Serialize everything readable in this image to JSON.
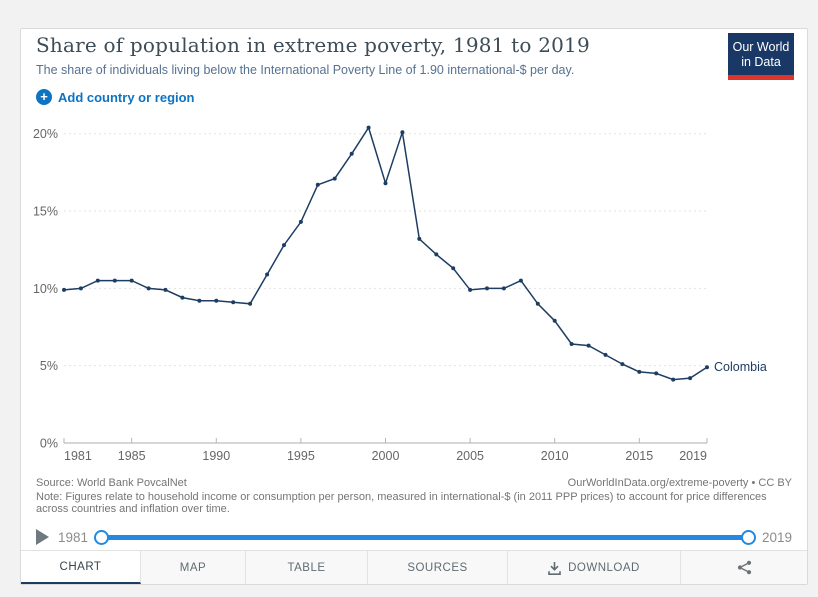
{
  "header": {
    "title": "Share of population in extreme poverty, 1981 to 2019",
    "subtitle": "The share of individuals living below the International Poverty Line of 1.90 international-$ per day.",
    "logo_line1": "Our World",
    "logo_line2": "in Data"
  },
  "controls": {
    "add_country_label": "Add country or region"
  },
  "chart_data": {
    "type": "line",
    "title": "Share of population in extreme poverty, 1981 to 2019",
    "xlabel": "",
    "ylabel": "",
    "grid": true,
    "legend_position": "end-of-line-label",
    "xlim": [
      1981,
      2019
    ],
    "ylim": [
      0,
      21.6
    ],
    "x_ticks": [
      1981,
      1985,
      1990,
      1995,
      2000,
      2005,
      2010,
      2015,
      2019
    ],
    "y_ticks": [
      {
        "value": 0,
        "label": "0%"
      },
      {
        "value": 5,
        "label": "5%"
      },
      {
        "value": 10,
        "label": "10%"
      },
      {
        "value": 15,
        "label": "15%"
      },
      {
        "value": 20,
        "label": "20%"
      }
    ],
    "x": [
      1981,
      1982,
      1983,
      1984,
      1985,
      1986,
      1987,
      1988,
      1989,
      1990,
      1991,
      1992,
      1993,
      1994,
      1995,
      1996,
      1997,
      1998,
      1999,
      2000,
      2001,
      2002,
      2003,
      2004,
      2005,
      2006,
      2007,
      2008,
      2009,
      2010,
      2011,
      2012,
      2013,
      2014,
      2015,
      2016,
      2017,
      2018,
      2019
    ],
    "series": [
      {
        "name": "Colombia",
        "color": "#1d3d63",
        "values": [
          9.9,
          10.0,
          10.5,
          10.5,
          10.5,
          10.0,
          9.9,
          9.4,
          9.2,
          9.2,
          9.1,
          9.0,
          10.9,
          12.8,
          14.3,
          16.7,
          17.1,
          18.7,
          20.4,
          16.8,
          20.1,
          13.2,
          12.2,
          11.3,
          9.9,
          10.0,
          10.0,
          10.5,
          9.0,
          7.9,
          6.4,
          6.3,
          5.7,
          5.1,
          4.6,
          4.5,
          4.1,
          4.2,
          4.9
        ]
      }
    ]
  },
  "footer": {
    "source_line": "Source: World Bank PovcalNet",
    "credit_line": "OurWorldInData.org/extreme-poverty • CC BY",
    "note_line": "Note: Figures relate to household income or consumption per person, measured in international-$ (in 2011 PPP prices) to account for price differences across countries and inflation over time."
  },
  "timeline": {
    "start_year": "1981",
    "end_year": "2019"
  },
  "tabs": {
    "chart": "CHART",
    "map": "MAP",
    "table": "TABLE",
    "sources": "SOURCES",
    "download": "DOWNLOAD"
  },
  "colors": {
    "line": "#1d3d63",
    "accent_blue": "#0d73c3",
    "slider_blue": "#2389e0",
    "logo_navy": "#1a3866",
    "logo_red": "#dd352c",
    "gridline": "#e2e2e2",
    "axis": "#adadad"
  }
}
